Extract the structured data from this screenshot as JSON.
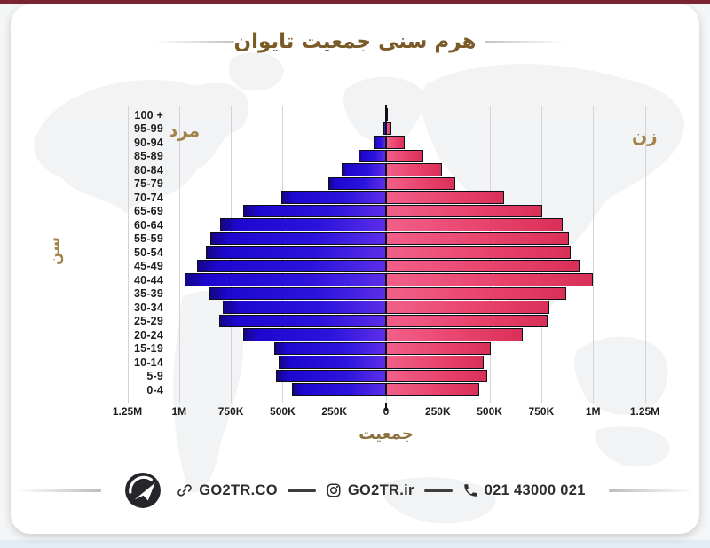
{
  "title": {
    "text": "هرم سنی جمعیت تایوان"
  },
  "frame": {
    "top_bar_color": "#7d2433",
    "bottom_bar_color": "#e2ecf2",
    "card_color": "#ffffff"
  },
  "chart_data": {
    "type": "bar",
    "subtype": "population_pyramid",
    "title": "هرم سنی جمعیت تایوان",
    "xlabel": "جمعیت",
    "ylabel": "سن",
    "grid": true,
    "legend": {
      "left": "مرد",
      "right": "زن"
    },
    "x_tick_labels_left_to_right": [
      "1.25M",
      "1M",
      "750K",
      "500K",
      "250K",
      "0",
      "250K",
      "500K",
      "750K",
      "1M",
      "1.25M"
    ],
    "x_max_each_side": 1250000,
    "age_groups_top_to_bottom": [
      "100 +",
      "95-99",
      "90-94",
      "85-89",
      "80-84",
      "75-79",
      "70-74",
      "65-69",
      "60-64",
      "55-59",
      "50-54",
      "45-49",
      "40-44",
      "35-39",
      "30-34",
      "25-29",
      "20-24",
      "15-19",
      "10-14",
      "5-9",
      "0-4"
    ],
    "series": [
      {
        "name": "مرد",
        "side": "left",
        "color": "#2b13dc",
        "values_thousands": [
          2,
          14,
          58,
          135,
          215,
          280,
          505,
          690,
          800,
          850,
          870,
          915,
          975,
          855,
          790,
          805,
          690,
          540,
          520,
          530,
          455
        ]
      },
      {
        "name": "زن",
        "side": "right",
        "color": "#e8436d",
        "values_thousands": [
          5,
          24,
          90,
          180,
          272,
          335,
          570,
          755,
          855,
          885,
          890,
          935,
          1000,
          870,
          790,
          780,
          660,
          505,
          472,
          490,
          450
        ]
      }
    ],
    "colors": {
      "male_bar": "#2b13dc",
      "female_bar": "#e8436d",
      "bar_outline": "#0f0f18",
      "gridline": "#d3d3d5",
      "labels_gold": "#a1834a",
      "title_gold": "#7a5b28",
      "tick_text": "#1b1b1b"
    }
  },
  "footer": {
    "website_label": "GO2TR.CO",
    "instagram_label": "GO2TR.ir",
    "phone_label": "021 43000 021"
  }
}
